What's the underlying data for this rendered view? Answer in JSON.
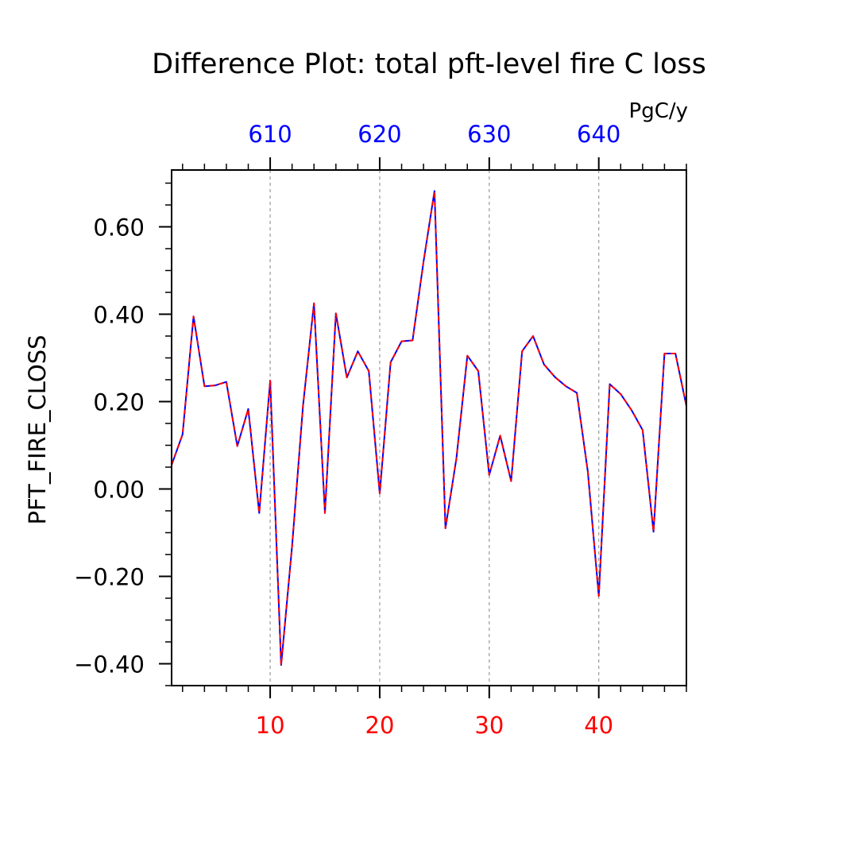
{
  "chart_data": {
    "type": "line",
    "title": "Difference Plot: total pft-level fire C loss",
    "units": "PgC/y",
    "ylabel": "PFT_FIRE_CLOSS",
    "xlim": [
      1,
      48
    ],
    "ylim": [
      -0.45,
      0.73
    ],
    "bottom_ticks": [
      "10",
      "20",
      "30",
      "40"
    ],
    "top_ticks": [
      "610",
      "620",
      "630",
      "640"
    ],
    "y_ticks": [
      "0.60",
      "0.40",
      "0.20",
      "0.00",
      "−0.20",
      "−0.40"
    ],
    "grid": "vertical dashed at major x ticks",
    "x": [
      1,
      2,
      3,
      4,
      5,
      6,
      7,
      8,
      9,
      10,
      11,
      12,
      13,
      14,
      15,
      16,
      17,
      18,
      19,
      20,
      21,
      22,
      23,
      24,
      25,
      26,
      27,
      28,
      29,
      30,
      31,
      32,
      33,
      34,
      35,
      36,
      37,
      38,
      39,
      40,
      41,
      42,
      43,
      44,
      45,
      46,
      47,
      48
    ],
    "series": [
      {
        "values": [
          0.055,
          0.125,
          0.395,
          0.235,
          0.237,
          0.245,
          0.098,
          0.183,
          -0.055,
          0.248,
          -0.403,
          -0.13,
          0.19,
          0.425,
          -0.055,
          0.402,
          0.255,
          0.315,
          0.27,
          -0.01,
          0.29,
          0.338,
          0.34,
          0.52,
          0.682,
          -0.09,
          0.07,
          0.305,
          0.27,
          0.032,
          0.122,
          0.018,
          0.315,
          0.35,
          0.285,
          0.256,
          0.235,
          0.22,
          0.04,
          -0.245,
          0.24,
          0.217,
          0.18,
          0.135,
          -0.098,
          0.31,
          0.31,
          0.19
        ],
        "color": "#0000ff",
        "style": "solid"
      },
      {
        "values": [
          0.055,
          0.125,
          0.395,
          0.235,
          0.237,
          0.245,
          0.098,
          0.183,
          -0.055,
          0.248,
          -0.403,
          -0.13,
          0.19,
          0.425,
          -0.055,
          0.402,
          0.255,
          0.315,
          0.27,
          -0.01,
          0.29,
          0.338,
          0.34,
          0.52,
          0.682,
          -0.09,
          0.07,
          0.305,
          0.27,
          0.032,
          0.122,
          0.018,
          0.315,
          0.35,
          0.285,
          0.256,
          0.235,
          0.22,
          0.04,
          -0.245,
          0.24,
          0.217,
          0.18,
          0.135,
          -0.098,
          0.31,
          0.31,
          0.19
        ],
        "color": "#ff0000",
        "style": "dashed"
      }
    ],
    "colors": {
      "axis": "#000000",
      "bottom_tick_labels": "#ff0000",
      "top_tick_labels": "#0000ff",
      "grid": "#999999"
    }
  }
}
